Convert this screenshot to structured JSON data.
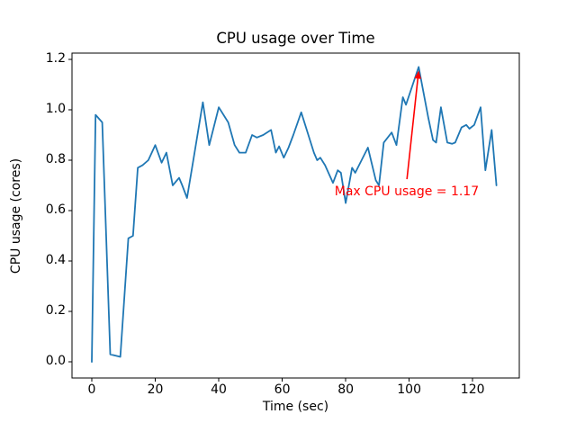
{
  "figure": {
    "background": "#ffffff",
    "spine_color": "#000000",
    "tick_color": "#000000"
  },
  "chart_data": {
    "type": "line",
    "title": "CPU usage over Time",
    "xlabel": "Time (sec)",
    "ylabel": "CPU usage (cores)",
    "xlim": [
      -6.24,
      134.7
    ],
    "ylim": [
      -0.064,
      1.225
    ],
    "xticks": [
      0,
      20,
      40,
      60,
      80,
      100,
      120
    ],
    "yticks": [
      0.0,
      0.2,
      0.4,
      0.6,
      0.8,
      1.0,
      1.2
    ],
    "grid": false,
    "legend_position": "none",
    "series": [
      {
        "name": "CPU usage",
        "color": "#1f77b4",
        "linewidth": 1.8,
        "x": [
          0,
          1.2,
          3.3,
          5.8,
          9,
          11.5,
          13,
          14.5,
          16,
          17.8,
          20,
          22,
          23.5,
          25.5,
          27.5,
          28.5,
          30,
          32,
          35,
          37,
          40,
          43,
          45,
          46.5,
          48.5,
          50.5,
          52,
          54,
          56.5,
          58,
          59,
          60.5,
          62,
          63.5,
          66,
          70,
          71,
          72,
          73.5,
          76,
          77.5,
          78.5,
          80,
          82,
          83,
          87,
          89.5,
          90.5,
          92,
          94.5,
          96,
          98,
          99,
          103,
          104.5,
          106,
          107.5,
          108.5,
          110,
          112,
          113.5,
          114.5,
          116.5,
          118,
          119,
          120.5,
          122.5,
          124,
          126,
          127.5
        ],
        "y": [
          0.0,
          0.98,
          0.95,
          0.03,
          0.02,
          0.49,
          0.5,
          0.77,
          0.78,
          0.8,
          0.86,
          0.79,
          0.83,
          0.7,
          0.73,
          0.7,
          0.65,
          0.8,
          1.03,
          0.86,
          1.01,
          0.95,
          0.86,
          0.83,
          0.83,
          0.9,
          0.89,
          0.9,
          0.92,
          0.83,
          0.855,
          0.81,
          0.85,
          0.9,
          0.99,
          0.83,
          0.8,
          0.81,
          0.78,
          0.71,
          0.76,
          0.75,
          0.63,
          0.77,
          0.75,
          0.85,
          0.72,
          0.7,
          0.87,
          0.91,
          0.86,
          1.05,
          1.02,
          1.17,
          1.07,
          0.97,
          0.88,
          0.87,
          1.01,
          0.87,
          0.865,
          0.87,
          0.93,
          0.94,
          0.925,
          0.94,
          1.01,
          0.76,
          0.92,
          0.7
        ]
      }
    ],
    "annotation": {
      "text": "Max CPU usage = 1.17",
      "color": "#ff0000",
      "max_value": 1.17,
      "xy": [
        103,
        1.17
      ],
      "arrow_tail": [
        99.3,
        0.725
      ],
      "text_xy": [
        76.5,
        0.702
      ]
    }
  }
}
